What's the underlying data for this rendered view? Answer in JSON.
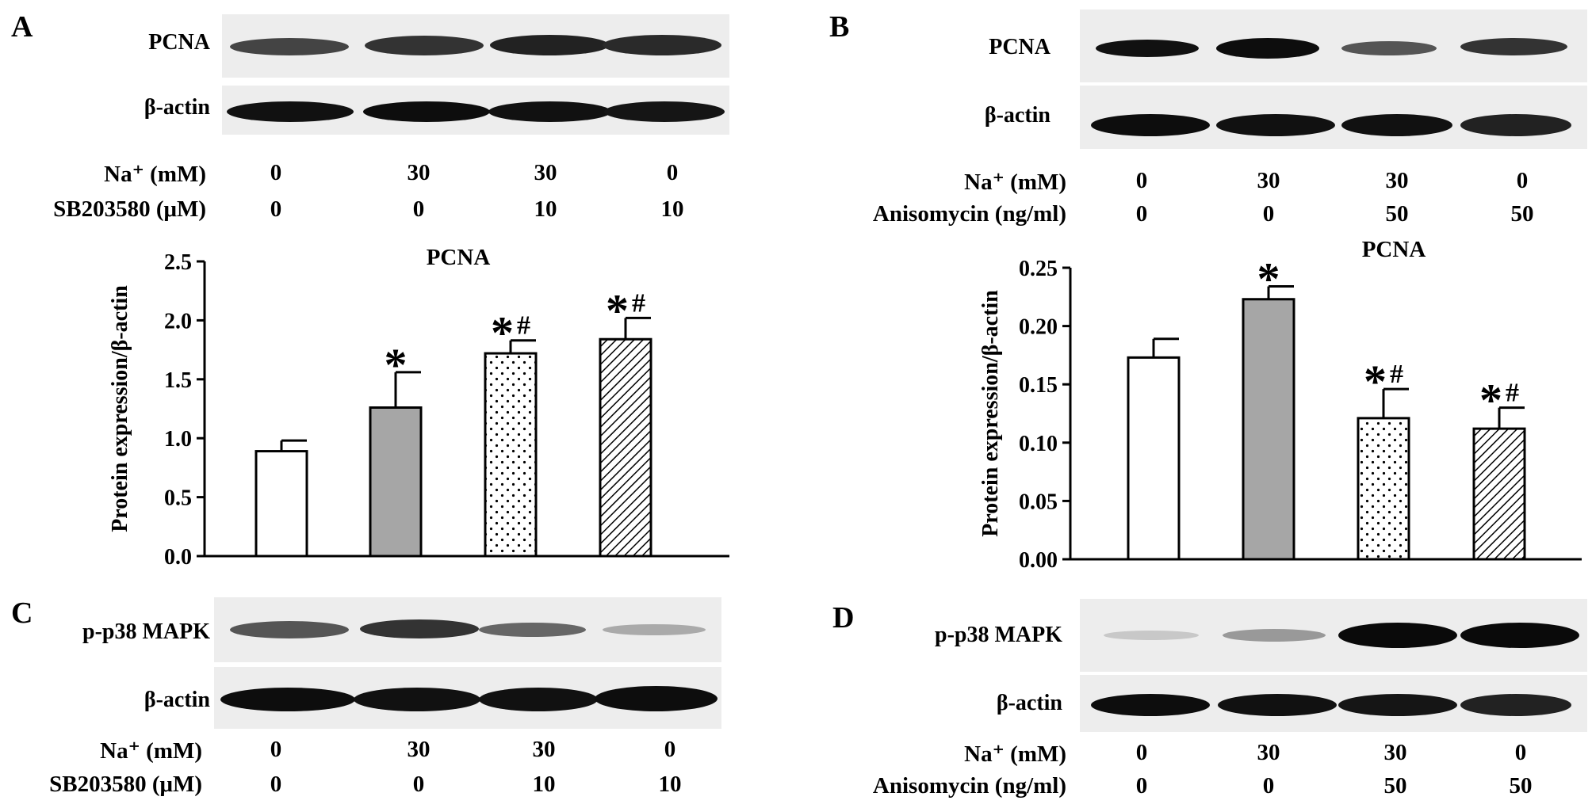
{
  "panels": {
    "A": {
      "letter": "A"
    },
    "B": {
      "letter": "B"
    },
    "C": {
      "letter": "C"
    },
    "D": {
      "letter": "D"
    }
  },
  "blots": {
    "pcna": "PCNA",
    "actin": "β-actin",
    "p38": "p-p38 MAPK"
  },
  "conditions": {
    "na_label": "Na⁺ (mM)",
    "sb_label": "SB203580 (μM)",
    "aniso_label": "Anisomycin (ng/ml)",
    "na_values": [
      "0",
      "30",
      "30",
      "0"
    ],
    "sb_values": [
      "0",
      "0",
      "10",
      "10"
    ],
    "aniso_values": [
      "0",
      "0",
      "50",
      "50"
    ]
  },
  "chart_data": [
    {
      "type": "bar",
      "title": "PCNA",
      "ylabel": "Protein expression/β-actin",
      "xlabel": "",
      "categories": [
        "",
        "",
        "",
        ""
      ],
      "values": [
        0.89,
        1.26,
        1.72,
        1.84
      ],
      "errors": [
        0.09,
        0.3,
        0.11,
        0.18
      ],
      "annotations": [
        "",
        "*",
        "*#",
        "*#"
      ],
      "patterns": [
        "white",
        "gray",
        "dots",
        "hatch"
      ],
      "ylim": [
        0,
        2.5
      ],
      "yticks": [
        "0.0",
        "0.5",
        "1.0",
        "1.5",
        "2.0",
        "2.5"
      ]
    },
    {
      "type": "bar",
      "title": "PCNA",
      "ylabel": "Protein expression/β-actin",
      "xlabel": "",
      "categories": [
        "",
        "",
        "",
        ""
      ],
      "values": [
        0.173,
        0.223,
        0.121,
        0.112
      ],
      "errors": [
        0.016,
        0.011,
        0.025,
        0.018
      ],
      "annotations": [
        "",
        "*",
        "*#",
        "*#"
      ],
      "patterns": [
        "white",
        "gray",
        "dots",
        "hatch"
      ],
      "ylim": [
        0,
        0.25
      ],
      "yticks": [
        "0.00",
        "0.05",
        "0.10",
        "0.15",
        "0.20",
        "0.25"
      ]
    }
  ]
}
